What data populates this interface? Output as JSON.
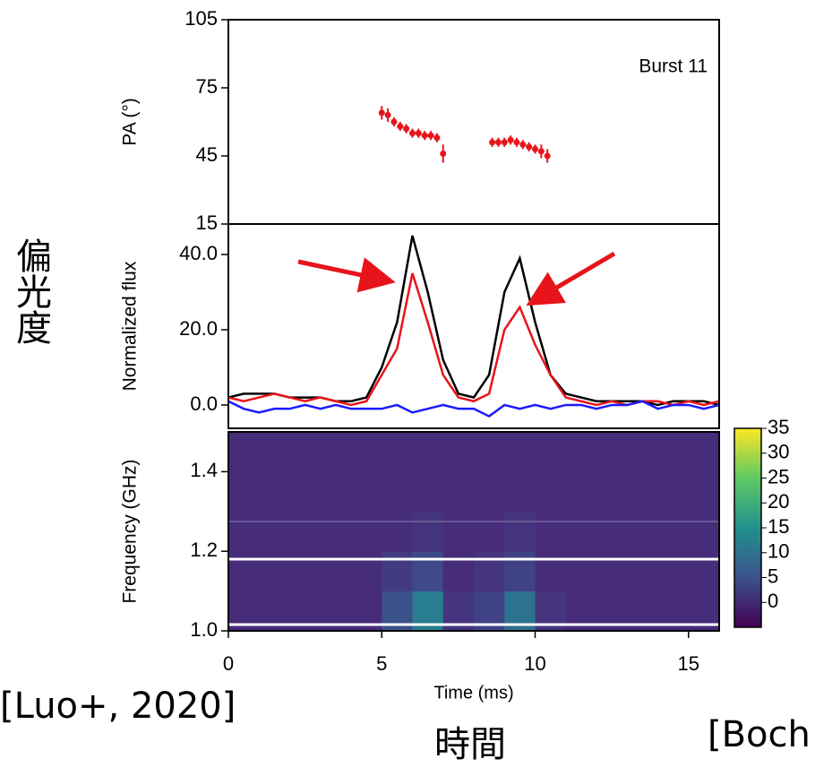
{
  "chart_data": [
    {
      "type": "scatter",
      "ylabel": "PA (°)",
      "label": "Burst 11",
      "color": "#e8141b",
      "xlim": [
        0,
        16
      ],
      "ylim": [
        15,
        105
      ],
      "yticks": [
        105,
        75,
        45,
        15
      ],
      "x": [
        5.0,
        5.2,
        5.4,
        5.6,
        5.8,
        6.0,
        6.2,
        6.4,
        6.6,
        6.8,
        7.0,
        8.6,
        8.8,
        9.0,
        9.2,
        9.4,
        9.6,
        9.8,
        10.0,
        10.2,
        10.4
      ],
      "values": [
        64,
        63,
        60,
        58,
        57,
        55,
        55,
        54,
        54,
        53,
        46,
        51,
        51,
        51,
        52,
        51,
        50,
        49,
        48,
        47,
        45
      ],
      "errors": [
        3,
        3,
        2,
        2,
        2,
        2,
        2,
        2,
        2,
        2,
        4,
        2,
        2,
        2,
        2,
        2,
        2,
        2,
        2,
        3,
        3
      ]
    },
    {
      "type": "line",
      "ylabel": "Normalized flux",
      "xlim": [
        0,
        16
      ],
      "ylim": [
        -6.2,
        48.1
      ],
      "yticks": [
        {
          "value": 40,
          "label": "40.0"
        },
        {
          "value": 20,
          "label": "20.0"
        },
        {
          "value": 0,
          "label": "0.0"
        }
      ],
      "x": [
        0,
        0.5,
        1,
        1.5,
        2,
        2.5,
        3,
        3.5,
        4,
        4.5,
        5,
        5.5,
        6,
        6.5,
        7,
        7.5,
        8,
        8.5,
        9,
        9.5,
        10,
        10.5,
        11,
        11.5,
        12,
        12.5,
        13,
        13.5,
        14,
        14.5,
        15,
        15.5,
        16
      ],
      "series": [
        {
          "color": "#000000",
          "values": [
            2,
            3,
            3,
            3,
            2,
            2,
            2,
            1,
            1,
            2,
            10,
            22,
            45,
            30,
            12,
            3,
            2,
            8,
            30,
            39,
            22,
            8,
            3,
            2,
            1,
            1,
            1,
            1,
            0,
            1,
            1,
            1,
            0
          ]
        },
        {
          "color": "#e8141b",
          "values": [
            2,
            1,
            2,
            3,
            2,
            1,
            2,
            1,
            0,
            1,
            8,
            15,
            35,
            22,
            8,
            2,
            1,
            3,
            20,
            26,
            16,
            8,
            2,
            1,
            0,
            1,
            0,
            1,
            1,
            0,
            1,
            0,
            1
          ]
        },
        {
          "color": "#1a1aff",
          "values": [
            1,
            -1,
            -2,
            -1,
            -1,
            0,
            -1,
            0,
            -1,
            -1,
            -1,
            0,
            -2,
            -1,
            0,
            -1,
            -1,
            -3,
            0,
            -1,
            0,
            -1,
            0,
            0,
            -1,
            0,
            0,
            1,
            -1,
            0,
            0,
            -1,
            0
          ]
        }
      ]
    },
    {
      "type": "heatmap",
      "ylabel": "Frequency (GHz)",
      "xlabel": "Time (ms)",
      "xlim": [
        0,
        16
      ],
      "ylim": [
        1.0,
        1.5
      ],
      "xticks": [
        0,
        5,
        10,
        15
      ],
      "yticks": [
        1.4,
        1.2,
        {
          "value": 1.0,
          "label": "1.0"
        }
      ],
      "z": [
        [
          0,
          0,
          0,
          0,
          0,
          5,
          12,
          1,
          3,
          10,
          1,
          0,
          0,
          0,
          0,
          0
        ],
        [
          0,
          0,
          0,
          0,
          0,
          2,
          4,
          0,
          1,
          3,
          0,
          0,
          0,
          0,
          0,
          0
        ],
        [
          0,
          0,
          0,
          0,
          0,
          0,
          1,
          0,
          0,
          1,
          0,
          0,
          0,
          0,
          0,
          0
        ],
        [
          0,
          0,
          0,
          0,
          0,
          0,
          0,
          0,
          0,
          0,
          0,
          0,
          0,
          0,
          0,
          0
        ],
        [
          0,
          0,
          0,
          0,
          0,
          0,
          0,
          0,
          0,
          0,
          0,
          0,
          0,
          0,
          0,
          0
        ]
      ],
      "clim": [
        -5,
        35
      ],
      "cticks": [
        35,
        30,
        25,
        20,
        15,
        10,
        5,
        0
      ]
    }
  ],
  "annotations": {
    "left": "偏光度",
    "bottom": "時間",
    "citation": "[Luo+, 2020]",
    "citation_right": "[Boch"
  }
}
